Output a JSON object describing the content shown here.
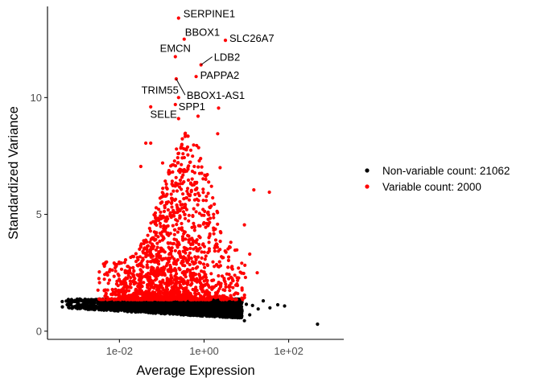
{
  "chart_data": {
    "type": "scatter",
    "xlabel": "Average Expression",
    "ylabel": "Standardized Variance",
    "x_scale": "log10",
    "xlim": [
      0.0002,
      2000
    ],
    "ylim": [
      -0.35,
      13.9
    ],
    "x_ticks": [
      {
        "value": 0.01,
        "label": "1e-02"
      },
      {
        "value": 1,
        "label": "1e+00"
      },
      {
        "value": 100,
        "label": "1e+02"
      }
    ],
    "y_ticks": [
      {
        "value": 0,
        "label": "0"
      },
      {
        "value": 5,
        "label": "5"
      },
      {
        "value": 10,
        "label": "10"
      }
    ],
    "grid": false,
    "legend_position": "right",
    "series": [
      {
        "name": "Non-variable count: 21062",
        "color": "#000000",
        "cloud": {
          "count": 2400,
          "x_range": [
            0.0004,
            8
          ],
          "y_at_low_x": 1.0,
          "y_at_high_x": 0.55,
          "y_max": 1.38
        },
        "points": [
          {
            "x": 0.00045,
            "y": 1.04
          },
          {
            "x": 0.00075,
            "y": 0.99
          },
          {
            "x": 0.0013,
            "y": 1.01
          },
          {
            "x": 10,
            "y": 1.15
          },
          {
            "x": 14,
            "y": 1.1
          },
          {
            "x": 19,
            "y": 0.95
          },
          {
            "x": 25,
            "y": 1.3
          },
          {
            "x": 36,
            "y": 1.0
          },
          {
            "x": 55,
            "y": 1.13
          },
          {
            "x": 80,
            "y": 1.08
          },
          {
            "x": 12,
            "y": 0.7
          },
          {
            "x": 9,
            "y": 0.45
          },
          {
            "x": 480,
            "y": 0.3
          }
        ]
      },
      {
        "name": "Variable count: 2000",
        "color": "#ff0000",
        "cloud": {
          "count": 1500,
          "x_range": [
            0.003,
            10
          ],
          "y_min": 1.35
        },
        "points": [
          {
            "x": 0.25,
            "y": 13.4
          },
          {
            "x": 0.34,
            "y": 12.5
          },
          {
            "x": 3.2,
            "y": 12.45
          },
          {
            "x": 0.21,
            "y": 11.75
          },
          {
            "x": 0.85,
            "y": 11.4
          },
          {
            "x": 0.65,
            "y": 10.9
          },
          {
            "x": 0.22,
            "y": 10.8
          },
          {
            "x": 0.25,
            "y": 10.0
          },
          {
            "x": 0.21,
            "y": 9.7
          },
          {
            "x": 0.055,
            "y": 9.6
          },
          {
            "x": 0.25,
            "y": 9.1
          },
          {
            "x": 0.72,
            "y": 9.2
          },
          {
            "x": 2.2,
            "y": 9.55
          },
          {
            "x": 2.1,
            "y": 8.45
          },
          {
            "x": 0.042,
            "y": 8.05
          },
          {
            "x": 0.055,
            "y": 8.05
          },
          {
            "x": 0.032,
            "y": 7.05
          },
          {
            "x": 0.105,
            "y": 7.2
          },
          {
            "x": 2.4,
            "y": 7.0
          },
          {
            "x": 0.27,
            "y": 6.8
          },
          {
            "x": 1.1,
            "y": 6.5
          },
          {
            "x": 1.5,
            "y": 6.2
          },
          {
            "x": 15,
            "y": 6.05
          },
          {
            "x": 35,
            "y": 5.95
          },
          {
            "x": 9,
            "y": 4.55
          },
          {
            "x": 12,
            "y": 3.3
          },
          {
            "x": 6.5,
            "y": 2.7
          },
          {
            "x": 18,
            "y": 2.5
          },
          {
            "x": 9.5,
            "y": 2.3
          }
        ]
      }
    ],
    "annotations": [
      {
        "text": "SERPINE1",
        "x": 0.25,
        "y": 13.4,
        "dx": 6,
        "dy": -1,
        "anchor": "start"
      },
      {
        "text": "BBOX1",
        "x": 0.34,
        "y": 12.5,
        "dx": 1,
        "dy": -4,
        "anchor": "start"
      },
      {
        "text": "SLC26A7",
        "x": 3.2,
        "y": 12.45,
        "dx": 5,
        "dy": 2,
        "anchor": "start"
      },
      {
        "text": "EMCN",
        "x": 0.21,
        "y": 11.75,
        "dx": 0,
        "dy": -6,
        "anchor": "middle"
      },
      {
        "text": "LDB2",
        "x": 0.85,
        "y": 11.4,
        "dx": 16,
        "dy": -5,
        "anchor": "start",
        "leader": true
      },
      {
        "text": "PAPPA2",
        "x": 0.65,
        "y": 10.9,
        "dx": 5,
        "dy": 3,
        "anchor": "start"
      },
      {
        "text": "TRIM55",
        "x": 0.25,
        "y": 10.0,
        "dx": 0,
        "dy": -5,
        "anchor": "end"
      },
      {
        "text": "BBOX1-AS1",
        "x": 0.22,
        "y": 10.8,
        "dx": 13,
        "dy": 25,
        "anchor": "start",
        "leader": true
      },
      {
        "text": "SPP1",
        "x": 0.21,
        "y": 9.7,
        "dx": 4,
        "dy": 7,
        "anchor": "start"
      },
      {
        "text": "SELE",
        "x": 0.25,
        "y": 9.1,
        "dx": -2,
        "dy": -1,
        "anchor": "end"
      }
    ]
  }
}
